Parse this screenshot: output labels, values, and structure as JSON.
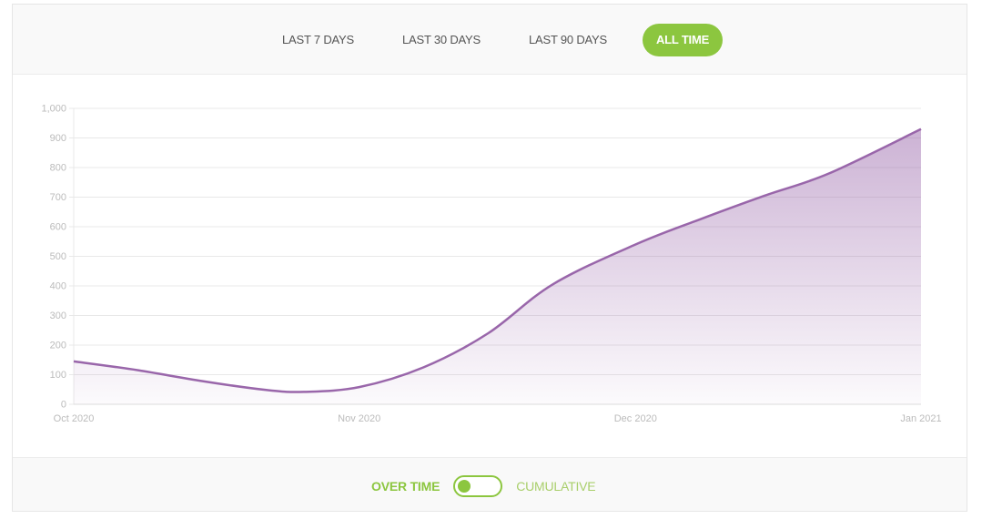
{
  "colors": {
    "accent": "#8cc63f",
    "series": "#9966aa",
    "grid": "#e8e8e8",
    "tick": "#bbbbbb"
  },
  "tabs": [
    {
      "label": "LAST 7 DAYS",
      "active": false
    },
    {
      "label": "LAST 30 DAYS",
      "active": false
    },
    {
      "label": "LAST 90 DAYS",
      "active": false
    },
    {
      "label": "ALL TIME",
      "active": true
    }
  ],
  "toggle": {
    "left_label": "OVER TIME",
    "right_label": "CUMULATIVE",
    "selected": "OVER TIME"
  },
  "chart_data": {
    "type": "area",
    "title": "",
    "xlabel": "",
    "ylabel": "",
    "ylim": [
      0,
      1000
    ],
    "yticks": [
      0,
      100,
      200,
      300,
      400,
      500,
      600,
      700,
      800,
      900,
      1000
    ],
    "ytick_labels": [
      "0",
      "100",
      "200",
      "300",
      "400",
      "500",
      "600",
      "700",
      "800",
      "900",
      "1,000"
    ],
    "xticks": [
      "2020-10-01",
      "2020-11-01",
      "2020-12-01",
      "2021-01-01"
    ],
    "xtick_labels": [
      "Oct 2020",
      "Nov 2020",
      "Dec 2020",
      "Jan 2021"
    ],
    "grid": true,
    "legend": "none",
    "series": [
      {
        "x": [
          "2020-10-01",
          "2020-10-08",
          "2020-10-15",
          "2020-10-22",
          "2020-10-26",
          "2020-11-01",
          "2020-11-08",
          "2020-11-15",
          "2020-11-22",
          "2020-12-01",
          "2020-12-08",
          "2020-12-15",
          "2020-12-22",
          "2021-01-01"
        ],
        "y": [
          145,
          115,
          78,
          48,
          42,
          58,
          125,
          240,
          405,
          540,
          625,
          705,
          780,
          930
        ]
      }
    ]
  }
}
